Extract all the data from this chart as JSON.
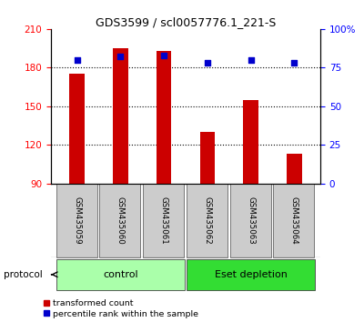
{
  "title": "GDS3599 / scl0057776.1_221-S",
  "samples": [
    "GSM435059",
    "GSM435060",
    "GSM435061",
    "GSM435062",
    "GSM435063",
    "GSM435064"
  ],
  "red_values": [
    175,
    195,
    193,
    130,
    155,
    113
  ],
  "blue_values": [
    80,
    82,
    83,
    78,
    80,
    78
  ],
  "ylim_left": [
    90,
    210
  ],
  "ylim_right": [
    0,
    100
  ],
  "yticks_left": [
    90,
    120,
    150,
    180,
    210
  ],
  "yticks_right": [
    0,
    25,
    50,
    75,
    100
  ],
  "ytick_labels_right": [
    "0",
    "25",
    "50",
    "75",
    "100%"
  ],
  "hlines": [
    120,
    150,
    180
  ],
  "bar_color": "#cc0000",
  "dot_color": "#0000cc",
  "groups": [
    {
      "label": "control",
      "start": 0,
      "end": 3,
      "color": "#aaffaa"
    },
    {
      "label": "Eset depletion",
      "start": 3,
      "end": 6,
      "color": "#33dd33"
    }
  ],
  "legend_items": [
    {
      "color": "#cc0000",
      "label": "transformed count"
    },
    {
      "color": "#0000cc",
      "label": "percentile rank within the sample"
    }
  ],
  "protocol_label": "protocol",
  "bar_width": 0.35,
  "background_color": "#ffffff",
  "tick_area_color": "#cccccc"
}
